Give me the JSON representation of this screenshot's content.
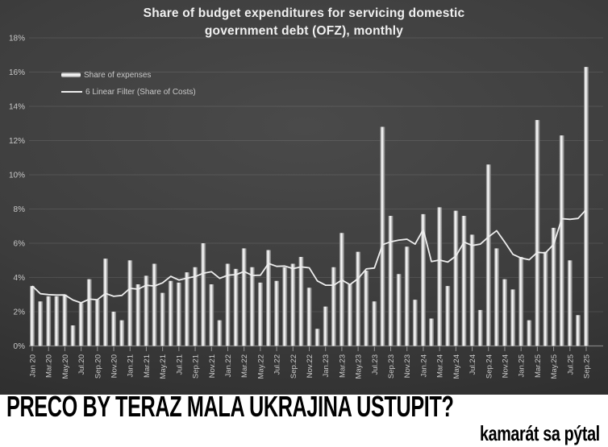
{
  "title": {
    "line1": "Share of budget expenditures for servicing domestic",
    "line2": "government debt (OFZ), monthly"
  },
  "legend": {
    "bars_label": "Share of expenses",
    "line_label": "6 Linear Filter (Share of Costs)"
  },
  "caption": {
    "headline": "PREČO BY TERAZ MALA UKRAJINA USTÚPIŤ?",
    "subline": "kamarát sa pýtal"
  },
  "colors": {
    "bar_edge": "#6f6f6f",
    "bar_mid": "#e2e2e2",
    "bar_highlight": "#ffffff",
    "trend_line": "#ededed",
    "grid_line": "rgba(255,255,255,0.10)",
    "baseline": "rgba(255,255,255,0.38)",
    "tick": "rgba(255,255,255,0.45)",
    "axis_text": "#c9c9c9",
    "caption_bg": "#ffffff",
    "caption_text": "#000000"
  },
  "chart_data": {
    "type": "bar",
    "title": "Share of budget expenditures for servicing domestic government debt (OFZ), monthly",
    "unit": "%",
    "ylim": [
      0,
      18
    ],
    "grid": true,
    "legend_position": "top-left",
    "y_tick_labels": [
      "18%",
      "16%",
      "14%",
      "12%",
      "10%",
      "8%",
      "6%",
      "4%",
      "2%",
      "0%"
    ],
    "y_tick_values": [
      18,
      16,
      14,
      12,
      10,
      8,
      6,
      4,
      2,
      0
    ],
    "x_tick_labels": [
      "Jan 20",
      "Mar.20",
      "May.20",
      "Jul.20",
      "Sep.20",
      "Nov.20",
      "Jan.21",
      "Mar.21",
      "May.21",
      "Jul.21",
      "Sep.21",
      "Nov.21",
      "Jan.22",
      "Mar.22",
      "May.22",
      "Jul.22",
      "Sep.22",
      "Nov.22",
      "Jan.23",
      "Mar.23",
      "May.23",
      "Jul.23",
      "Sep.23",
      "Nov.23",
      "Jan.24",
      "Mar.24",
      "May.24",
      "Jul.24",
      "Sep.24",
      "Nov.24",
      "Jan.25",
      "Mar.25",
      "May.25",
      "Jul.25",
      "Sep.25"
    ],
    "categories": [
      "Jan.20",
      "Feb.20",
      "Mar.20",
      "Apr.20",
      "May.20",
      "Jun.20",
      "Jul.20",
      "Aug.20",
      "Sep.20",
      "Oct.20",
      "Nov.20",
      "Dec.20",
      "Jan.21",
      "Feb.21",
      "Mar.21",
      "Apr.21",
      "May.21",
      "Jun.21",
      "Jul.21",
      "Aug.21",
      "Sep.21",
      "Oct.21",
      "Nov.21",
      "Dec.21",
      "Jan.22",
      "Feb.22",
      "Mar.22",
      "Apr.22",
      "May.22",
      "Jun.22",
      "Jul.22",
      "Aug.22",
      "Sep.22",
      "Oct.22",
      "Nov.22",
      "Dec.22",
      "Jan.23",
      "Feb.23",
      "Mar.23",
      "Apr.23",
      "May.23",
      "Jun.23",
      "Jul.23",
      "Aug.23",
      "Sep.23",
      "Oct.23",
      "Nov.23",
      "Dec.23",
      "Jan.24",
      "Feb.24",
      "Mar.24",
      "Apr.24",
      "May.24",
      "Jun.24",
      "Jul.24",
      "Aug.24",
      "Sep.24",
      "Oct.24",
      "Nov.24",
      "Dec.24",
      "Jan.25",
      "Feb.25",
      "Mar.25",
      "Apr.25",
      "May.25",
      "Jun.25",
      "Jul.25",
      "Aug.25",
      "Sep.25"
    ],
    "series": [
      {
        "name": "Share of expenses",
        "type": "bar",
        "values": [
          3.5,
          2.6,
          2.9,
          2.9,
          3.0,
          1.2,
          2.5,
          3.9,
          2.7,
          5.1,
          2.0,
          1.5,
          5.0,
          3.6,
          4.1,
          4.8,
          3.1,
          3.8,
          3.7,
          4.3,
          4.6,
          6.0,
          3.6,
          1.5,
          4.8,
          4.5,
          5.7,
          4.6,
          3.7,
          5.6,
          3.8,
          4.6,
          4.8,
          5.2,
          3.4,
          1.0,
          2.3,
          4.6,
          6.6,
          3.6,
          5.5,
          4.4,
          2.6,
          12.8,
          7.6,
          4.2,
          5.8,
          2.7,
          7.7,
          1.6,
          8.1,
          3.5,
          7.9,
          7.6,
          6.5,
          2.1,
          10.6,
          5.7,
          3.9,
          3.3,
          5.2,
          1.5,
          13.2,
          5.5,
          6.9,
          12.3,
          5.0,
          1.8,
          16.3
        ]
      },
      {
        "name": "6 Linear Filter (Share of Costs)",
        "type": "line",
        "derived_from": "trailing 6-point mean of 'Share of expenses'"
      }
    ]
  }
}
